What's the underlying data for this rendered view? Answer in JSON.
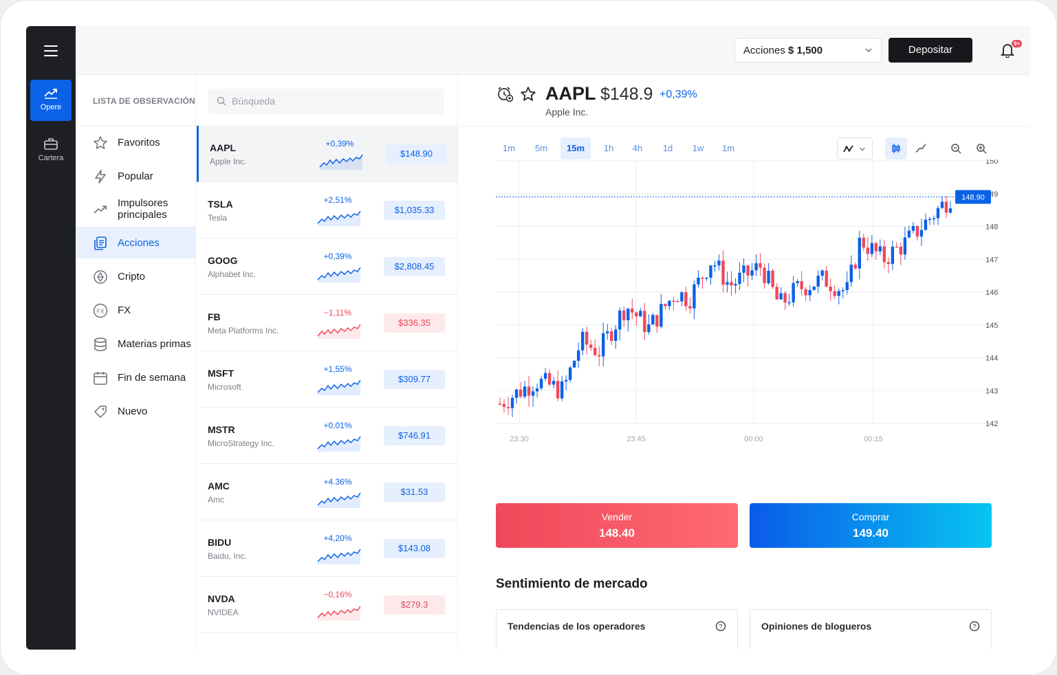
{
  "rail": {
    "items": [
      {
        "label": "Opere"
      },
      {
        "label": "Cartera"
      }
    ]
  },
  "topbar": {
    "account_label": "Acciones",
    "account_value": "$ 1,500",
    "deposit_label": "Depositar",
    "notifications_badge": "9+"
  },
  "categories": {
    "header": "LISTA DE OBSERVACIÓN",
    "items": [
      {
        "label": "Favoritos",
        "icon": "star-icon"
      },
      {
        "label": "Popular",
        "icon": "lightning-icon"
      },
      {
        "label": "Impulsores principales",
        "icon": "trending-up-icon"
      },
      {
        "label": "Acciones",
        "icon": "stocks-icon",
        "active": true
      },
      {
        "label": "Cripto",
        "icon": "crypto-icon"
      },
      {
        "label": "FX",
        "icon": "fx-icon"
      },
      {
        "label": "Materias primas",
        "icon": "commodities-icon"
      },
      {
        "label": "Fin de semana",
        "icon": "calendar-icon"
      },
      {
        "label": "Nuevo",
        "icon": "tag-icon"
      }
    ]
  },
  "watchlist": {
    "search_placeholder": "Búsqueda",
    "rows": [
      {
        "symbol": "AAPL",
        "name": "Apple Inc.",
        "change": "+0,39%",
        "price": "$148.90",
        "dir": "up"
      },
      {
        "symbol": "TSLA",
        "name": "Tesla",
        "change": "+2,51%",
        "price": "$1,035.33",
        "dir": "up"
      },
      {
        "symbol": "GOOG",
        "name": "Alphabet Inc.",
        "change": "+0,39%",
        "price": "$2,808.45",
        "dir": "up"
      },
      {
        "symbol": "FB",
        "name": "Meta Platforms Inc.",
        "change": "−1,11%",
        "price": "$336.35",
        "dir": "dn"
      },
      {
        "symbol": "MSFT",
        "name": "Microsoft",
        "change": "+1,55%",
        "price": "$309.77",
        "dir": "up"
      },
      {
        "symbol": "MSTR",
        "name": "MicroStrategy Inc.",
        "change": "+0,01%",
        "price": "$746.91",
        "dir": "up"
      },
      {
        "symbol": "AMC",
        "name": "Amc",
        "change": "+4.36%",
        "price": "$31.53",
        "dir": "up"
      },
      {
        "symbol": "BIDU",
        "name": "Baidu, Inc.",
        "change": "+4,20%",
        "price": "$143.08",
        "dir": "up"
      },
      {
        "symbol": "NVDA",
        "name": "NVIDEA",
        "change": "−0,16%",
        "price": "$279.3",
        "dir": "dn"
      }
    ]
  },
  "instrument": {
    "symbol": "AAPL",
    "price": "$148.9",
    "change": "+0,39%",
    "name": "Apple Inc."
  },
  "timeframes": [
    "1m",
    "5m",
    "15m",
    "1h",
    "4h",
    "1d",
    "1w",
    "1m"
  ],
  "active_timeframe": "15m",
  "chart_data": {
    "type": "candlestick",
    "y_ticks": [
      "150",
      "149",
      "148",
      "147",
      "146",
      "145",
      "144",
      "143",
      "142"
    ],
    "x_ticks": [
      "23:30",
      "23:45",
      "00:00",
      "00:15"
    ],
    "ylim": [
      142,
      150
    ],
    "last_price_label": "148.90",
    "last_price": 148.9,
    "trend_points": [
      {
        "x": 0,
        "y": 142.6
      },
      {
        "x": 0.08,
        "y": 143.3
      },
      {
        "x": 0.14,
        "y": 143.0
      },
      {
        "x": 0.18,
        "y": 144.5
      },
      {
        "x": 0.22,
        "y": 144.2
      },
      {
        "x": 0.28,
        "y": 145.6
      },
      {
        "x": 0.33,
        "y": 144.9
      },
      {
        "x": 0.39,
        "y": 146.0
      },
      {
        "x": 0.42,
        "y": 145.8
      },
      {
        "x": 0.47,
        "y": 147.0
      },
      {
        "x": 0.51,
        "y": 146.2
      },
      {
        "x": 0.58,
        "y": 146.8
      },
      {
        "x": 0.62,
        "y": 145.6
      },
      {
        "x": 0.66,
        "y": 146.1
      },
      {
        "x": 0.72,
        "y": 146.4
      },
      {
        "x": 0.77,
        "y": 146.0
      },
      {
        "x": 0.8,
        "y": 147.6
      },
      {
        "x": 0.85,
        "y": 147.0
      },
      {
        "x": 0.9,
        "y": 147.5
      },
      {
        "x": 0.95,
        "y": 148.2
      },
      {
        "x": 1.0,
        "y": 148.9
      }
    ]
  },
  "trade": {
    "sell_label": "Vender",
    "sell_price": "148.40",
    "buy_label": "Comprar",
    "buy_price": "149.40"
  },
  "sentiment": {
    "title": "Sentimiento de mercado",
    "cards": [
      {
        "title": "Tendencias de los operadores"
      },
      {
        "title": "Opiniones de bloguero"
      }
    ]
  },
  "colors": {
    "accent": "#0b62e8",
    "up": "#0b62e8",
    "down": "#f0485a"
  }
}
